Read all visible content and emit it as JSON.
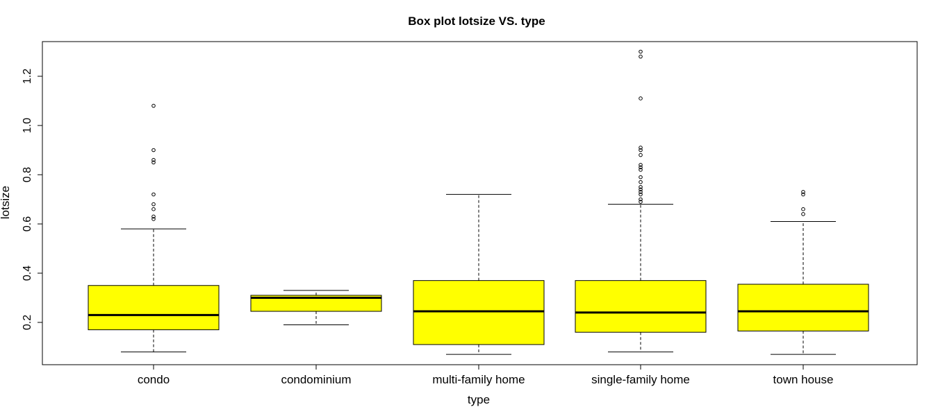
{
  "chart_data": {
    "type": "box",
    "title": "Box plot lotsize VS. type",
    "xlabel": "type",
    "ylabel": "lotsize",
    "ylim": [
      0.05,
      1.32
    ],
    "y_ticks": [
      0.2,
      0.4,
      0.6,
      0.8,
      1.0,
      1.2
    ],
    "y_tick_labels": [
      "0.2",
      "0.4",
      "0.6",
      "0.8",
      "1.0",
      "1.2"
    ],
    "grid": false,
    "box_color": "#ffff00",
    "categories": [
      "condo",
      "condominium",
      "multi-family home",
      "single-family home",
      "town house"
    ],
    "boxes": [
      {
        "category": "condo",
        "whisker_low": 0.08,
        "q1": 0.17,
        "median": 0.23,
        "q3": 0.35,
        "whisker_high": 0.58,
        "outliers": [
          0.62,
          0.63,
          0.66,
          0.68,
          0.72,
          0.85,
          0.86,
          0.9,
          1.08
        ]
      },
      {
        "category": "condominium",
        "whisker_low": 0.19,
        "q1": 0.245,
        "median": 0.3,
        "q3": 0.31,
        "whisker_high": 0.33,
        "outliers": []
      },
      {
        "category": "multi-family home",
        "whisker_low": 0.07,
        "q1": 0.11,
        "median": 0.245,
        "q3": 0.37,
        "whisker_high": 0.72,
        "outliers": []
      },
      {
        "category": "single-family home",
        "whisker_low": 0.08,
        "q1": 0.16,
        "median": 0.24,
        "q3": 0.37,
        "whisker_high": 0.68,
        "outliers": [
          0.69,
          0.7,
          0.72,
          0.73,
          0.74,
          0.75,
          0.77,
          0.79,
          0.82,
          0.83,
          0.84,
          0.88,
          0.9,
          0.91,
          1.11,
          1.28,
          1.3
        ]
      },
      {
        "category": "town house",
        "whisker_low": 0.07,
        "q1": 0.165,
        "median": 0.245,
        "q3": 0.355,
        "whisker_high": 0.61,
        "outliers": [
          0.64,
          0.66,
          0.72,
          0.73
        ]
      }
    ]
  }
}
